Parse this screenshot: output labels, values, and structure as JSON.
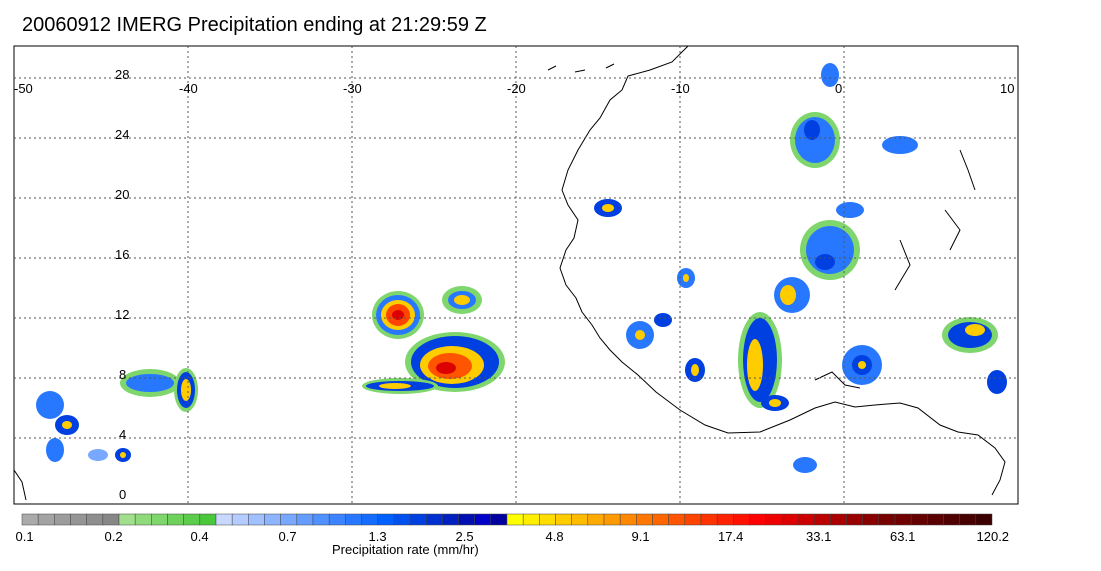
{
  "title": "20060912 IMERG Precipitation ending at 21:29:59 Z",
  "map": {
    "lon_labels": [
      "-50",
      "-40",
      "-30",
      "-20",
      "-10",
      "0",
      "10"
    ],
    "lat_labels": [
      "28",
      "24",
      "20",
      "16",
      "12",
      "8",
      "4",
      "0"
    ],
    "coastline_color": "#000000",
    "grid_style": "dotted"
  },
  "colorbar": {
    "label": "Precipitation rate (mm/hr)",
    "tick_labels": [
      "0.1",
      "0.2",
      "0.4",
      "0.7",
      "1.3",
      "2.5",
      "4.8",
      "9.1",
      "17.4",
      "33.1",
      "63.1",
      "120.2"
    ],
    "colors": [
      "#aaaaaa",
      "#a3a3a3",
      "#9c9c9c",
      "#959595",
      "#8e8e8e",
      "#878787",
      "#a0e08c",
      "#8fdb7c",
      "#7ed66c",
      "#6dd15c",
      "#5ccc4c",
      "#4bc73c",
      "#c8d8ff",
      "#b4ccff",
      "#a0c0ff",
      "#8cb4ff",
      "#78a8ff",
      "#649cff",
      "#5090ff",
      "#3c84ff",
      "#2878ff",
      "#146cff",
      "#0060ff",
      "#0050f0",
      "#0040e0",
      "#0030d0",
      "#0020c0",
      "#0010b0",
      "#0000c8",
      "#0000a0",
      "#ffff00",
      "#ffee00",
      "#ffdd00",
      "#ffcc00",
      "#ffbb00",
      "#ffaa00",
      "#ff9900",
      "#ff8800",
      "#ff7700",
      "#ff6600",
      "#ff5500",
      "#ff4400",
      "#ff3300",
      "#ff2200",
      "#ff1100",
      "#ff0000",
      "#ee0000",
      "#dd0000",
      "#cc0000",
      "#bb0000",
      "#aa0000",
      "#990000",
      "#880000",
      "#770000",
      "#700000",
      "#650000",
      "#5a0000",
      "#500000",
      "#460000",
      "#3c0000"
    ]
  }
}
